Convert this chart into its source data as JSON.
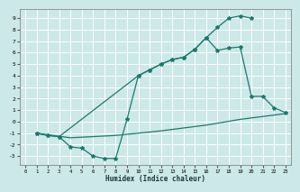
{
  "line1_x": [
    1,
    2,
    3,
    10,
    11,
    12,
    13,
    14,
    15,
    16,
    17,
    18,
    19,
    20
  ],
  "line1_y": [
    -1,
    -1.2,
    -1.3,
    4.0,
    4.5,
    5.0,
    5.4,
    5.6,
    6.3,
    7.3,
    8.2,
    9.0,
    9.2,
    9.0
  ],
  "line2_x": [
    1,
    2,
    3,
    4,
    5,
    6,
    7,
    8,
    9,
    10,
    11,
    12,
    13,
    14,
    15,
    16,
    17,
    18,
    19,
    20,
    21,
    22,
    23
  ],
  "line2_y": [
    -1.0,
    -1.2,
    -1.3,
    -2.2,
    -2.3,
    -3.0,
    -3.2,
    -3.2,
    0.2,
    4.0,
    4.5,
    5.0,
    5.4,
    5.6,
    6.3,
    7.3,
    6.2,
    6.4,
    6.5,
    2.2,
    2.2,
    1.2,
    0.8
  ],
  "line3_x": [
    1,
    4,
    8,
    12,
    16,
    19,
    23
  ],
  "line3_y": [
    -1.0,
    -1.4,
    -1.2,
    -0.8,
    -0.3,
    0.2,
    0.7
  ],
  "line_color": "#1a7a6e",
  "bg_color": "#cce8e8",
  "grid_color": "#b0d8d8",
  "xlabel": "Humidex (Indice chaleur)",
  "xlim": [
    -0.5,
    23.5
  ],
  "ylim": [
    -3.8,
    9.8
  ],
  "xticks": [
    0,
    1,
    2,
    3,
    4,
    5,
    6,
    7,
    8,
    9,
    10,
    11,
    12,
    13,
    14,
    15,
    16,
    17,
    18,
    19,
    20,
    21,
    22,
    23
  ],
  "yticks": [
    -3,
    -2,
    -1,
    0,
    1,
    2,
    3,
    4,
    5,
    6,
    7,
    8,
    9
  ]
}
